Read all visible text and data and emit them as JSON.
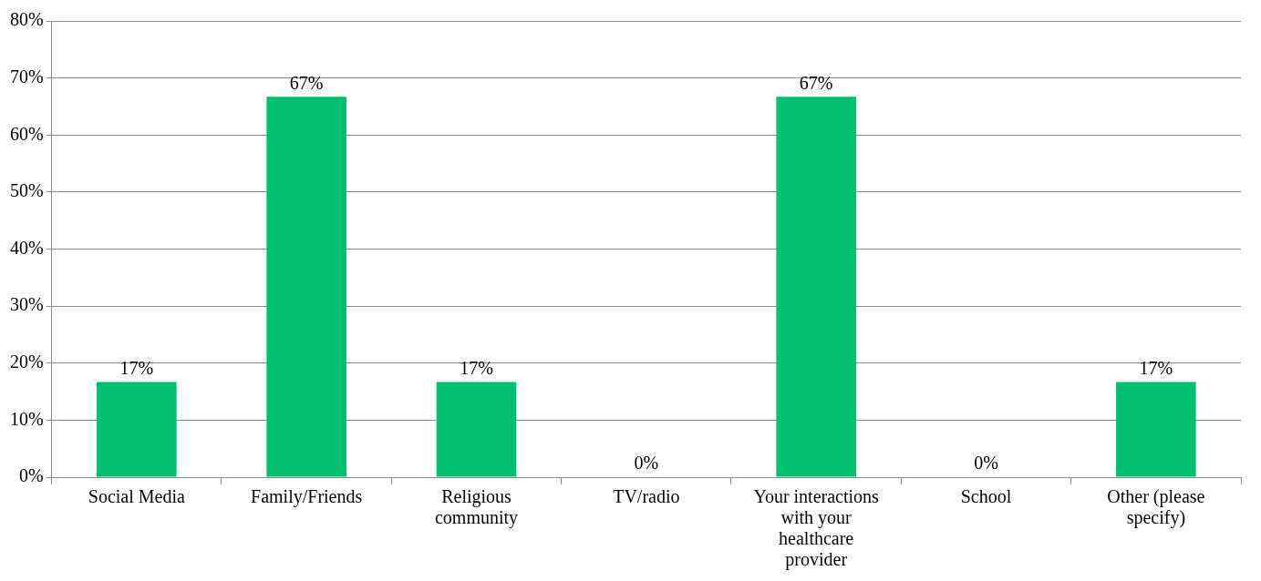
{
  "chart_data": {
    "type": "bar",
    "categories": [
      "Social Media",
      "Family/Friends",
      "Religious community",
      "TV/radio",
      "Your interactions with your healthcare provider",
      "School",
      "Other (please specify)"
    ],
    "values": [
      16.7,
      66.7,
      16.7,
      0,
      66.7,
      0,
      16.7
    ],
    "value_labels": [
      "17%",
      "67%",
      "17%",
      "0%",
      "67%",
      "0%",
      "17%"
    ],
    "color": "#00bf6f",
    "ylim": [
      0,
      80
    ],
    "yticks": [
      {
        "value": 0,
        "label": "0%"
      },
      {
        "value": 10,
        "label": "10%"
      },
      {
        "value": 20,
        "label": "20%"
      },
      {
        "value": 30,
        "label": "30%"
      },
      {
        "value": 40,
        "label": "40%"
      },
      {
        "value": 50,
        "label": "50%"
      },
      {
        "value": 60,
        "label": "60%"
      },
      {
        "value": 70,
        "label": "70%"
      },
      {
        "value": 80,
        "label": "80%"
      }
    ],
    "grid": "y",
    "legend": false
  }
}
